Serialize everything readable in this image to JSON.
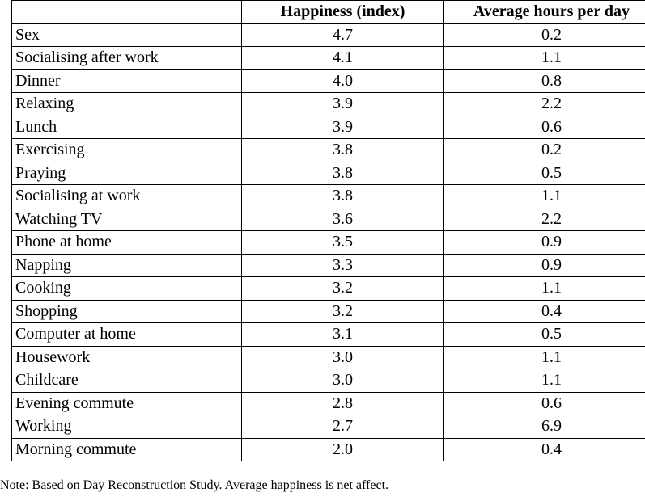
{
  "table": {
    "header": [
      "Happiness (index)",
      "Average hours per day"
    ],
    "rows": [
      [
        "Sex",
        "4.7",
        "0.2"
      ],
      [
        "Socialising after work",
        "4.1",
        "1.1"
      ],
      [
        "Dinner",
        "4.0",
        "0.8"
      ],
      [
        "Relaxing",
        "3.9",
        "2.2"
      ],
      [
        "Lunch",
        "3.9",
        "0.6"
      ],
      [
        "Exercising",
        "3.8",
        "0.2"
      ],
      [
        "Praying",
        "3.8",
        "0.5"
      ],
      [
        "Socialising at work",
        "3.8",
        "1.1"
      ],
      [
        "Watching TV",
        "3.6",
        "2.2"
      ],
      [
        "Phone at home",
        "3.5",
        "0.9"
      ],
      [
        "Napping",
        "3.3",
        "0.9"
      ],
      [
        "Cooking",
        "3.2",
        "1.1"
      ],
      [
        "Shopping",
        "3.2",
        "0.4"
      ],
      [
        "Computer at home",
        "3.1",
        "0.5"
      ],
      [
        "Housework",
        "3.0",
        "1.1"
      ],
      [
        "Childcare",
        "3.0",
        "1.1"
      ],
      [
        "Evening commute",
        "2.8",
        "0.6"
      ],
      [
        "Working",
        "2.7",
        "6.9"
      ],
      [
        "Morning commute",
        "2.0",
        "0.4"
      ]
    ]
  },
  "note": "Note: Based on Day Reconstruction Study.  Average happiness is net affect."
}
